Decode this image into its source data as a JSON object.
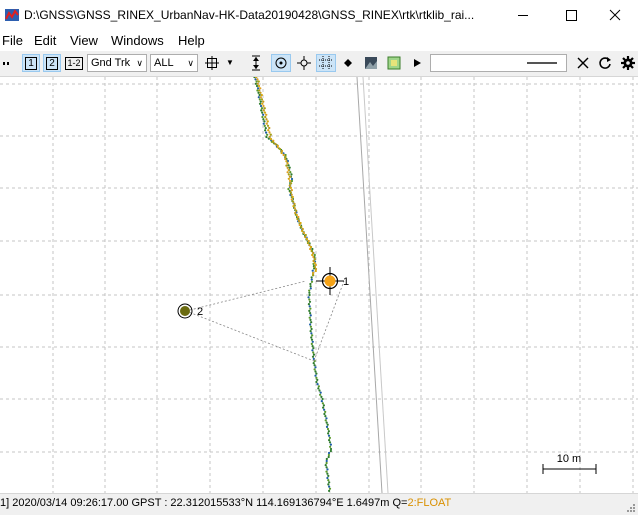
{
  "window": {
    "title": "D:\\GNSS\\GNSS_RINEX_UrbanNav-HK-Data20190428\\GNSS_RINEX\\rtk\\rtklib_rai..."
  },
  "menu": [
    "File",
    "Edit",
    "View",
    "Windows",
    "Help"
  ],
  "toolbar": {
    "btn1": "1",
    "btn2": "2",
    "btn12": "1-2",
    "plot_type": "Gnd Trk",
    "quality": "ALL"
  },
  "plot": {
    "marker1_label": "1",
    "marker2_label": "2",
    "scale_label": "10 m"
  },
  "status": {
    "main": "1] 2020/03/14 09:26:17.00 GPST :  22.312015533°N  114.169136794°E    1.6497m  Q=",
    "quality": "2:FLOAT"
  }
}
